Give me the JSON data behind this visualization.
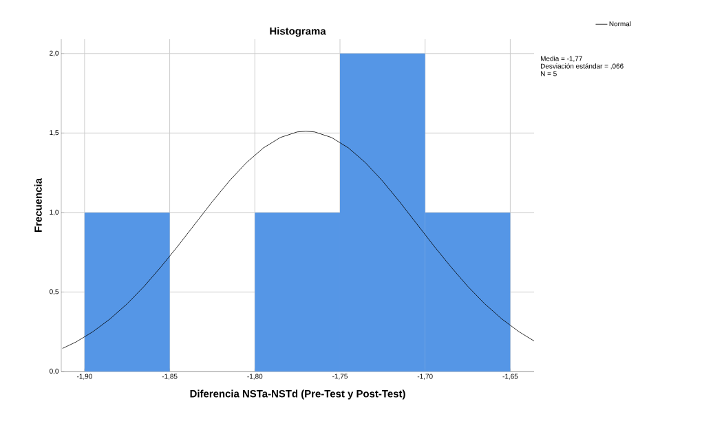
{
  "chart_data": {
    "type": "histogram",
    "title": "Histograma",
    "xlabel": "Diferencia NSTa-NSTd  (Pre-Test y Post-Test)",
    "ylabel": "Frecuencia",
    "annotations": [
      "Media = -1,77",
      "Desviación estándar = ,066",
      "N = 5"
    ],
    "series": [
      {
        "color": "#5596e6",
        "bins": [
          -1.9,
          -1.85,
          -1.8,
          -1.75,
          -1.7,
          -1.65
        ],
        "values": [
          1,
          0,
          1,
          2,
          1
        ]
      },
      {
        "type": "line",
        "name": "Normal",
        "color": "#000000",
        "x": [
          -1.913,
          -1.905,
          -1.895,
          -1.885,
          -1.875,
          -1.865,
          -1.855,
          -1.845,
          -1.835,
          -1.825,
          -1.815,
          -1.805,
          -1.795,
          -1.785,
          -1.775,
          -1.77,
          -1.765,
          -1.755,
          -1.745,
          -1.735,
          -1.725,
          -1.715,
          -1.705,
          -1.695,
          -1.685,
          -1.675,
          -1.665,
          -1.655,
          -1.645,
          -1.636
        ],
        "values": [
          0.145,
          0.186,
          0.251,
          0.331,
          0.426,
          0.536,
          0.66,
          0.792,
          0.93,
          1.068,
          1.198,
          1.313,
          1.406,
          1.472,
          1.507,
          1.511,
          1.507,
          1.472,
          1.406,
          1.313,
          1.198,
          1.068,
          0.93,
          0.792,
          0.66,
          0.536,
          0.426,
          0.331,
          0.251,
          0.192
        ]
      }
    ],
    "xlim": [
      -1.9137,
      -1.636
    ],
    "ylim": [
      0,
      2.09
    ],
    "xticks": [
      {
        "value": -1.9,
        "label": "-1,90"
      },
      {
        "value": -1.85,
        "label": "-1,85"
      },
      {
        "value": -1.8,
        "label": "-1,80"
      },
      {
        "value": -1.75,
        "label": "-1,75"
      },
      {
        "value": -1.7,
        "label": "-1,70"
      },
      {
        "value": -1.65,
        "label": "-1,65"
      }
    ],
    "yticks": [
      {
        "value": 0,
        "label": "0,0"
      },
      {
        "value": 0.5,
        "label": "0,5"
      },
      {
        "value": 1.0,
        "label": "1,0"
      },
      {
        "value": 1.5,
        "label": "1,5"
      },
      {
        "value": 2.0,
        "label": "2,0"
      }
    ],
    "grid": true,
    "legend": "top right"
  }
}
